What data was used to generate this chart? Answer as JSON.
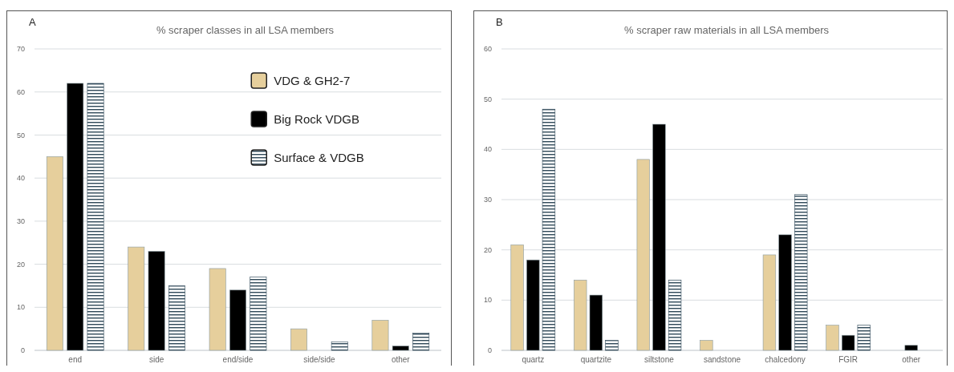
{
  "chart_data": [
    {
      "type": "bar",
      "title": "% scraper classes in all LSA members",
      "annotations": [
        "A"
      ],
      "categories": [
        "end",
        "side",
        "end/side",
        "side/side",
        "other"
      ],
      "series": [
        {
          "name": "VDG & GH2-7",
          "color": "#e6cf9c",
          "values": [
            45,
            24,
            19,
            5,
            7
          ]
        },
        {
          "name": "Big Rock VDGB",
          "color": "#000000",
          "values": [
            62,
            23,
            14,
            0,
            1
          ]
        },
        {
          "name": "Surface & VDGB",
          "color": "#2f4858",
          "values": [
            62,
            15,
            17,
            2,
            4
          ]
        }
      ],
      "ylim": [
        0,
        70
      ],
      "yticks": [
        0,
        10,
        20,
        30,
        40,
        50,
        60,
        70
      ],
      "grid": "y",
      "legend": "top right"
    },
    {
      "type": "bar",
      "title": "% scraper raw materials in all LSA members",
      "annotations": [
        "B"
      ],
      "categories": [
        "quartz",
        "quartzite",
        "siltstone",
        "sandstone",
        "chalcedony",
        "FGIR",
        "other"
      ],
      "series": [
        {
          "color": "#e6cf9c",
          "values": [
            21,
            14,
            38,
            2,
            19,
            5,
            0
          ]
        },
        {
          "color": "#000000",
          "values": [
            18,
            11,
            45,
            0,
            23,
            3,
            1
          ]
        },
        {
          "color": "#2f4858",
          "values": [
            48,
            2,
            14,
            0,
            31,
            5,
            0
          ]
        }
      ],
      "ylim": [
        0,
        60
      ],
      "yticks": [
        0,
        10,
        20,
        30,
        40,
        50,
        60
      ],
      "grid": "y",
      "legend": false
    }
  ]
}
